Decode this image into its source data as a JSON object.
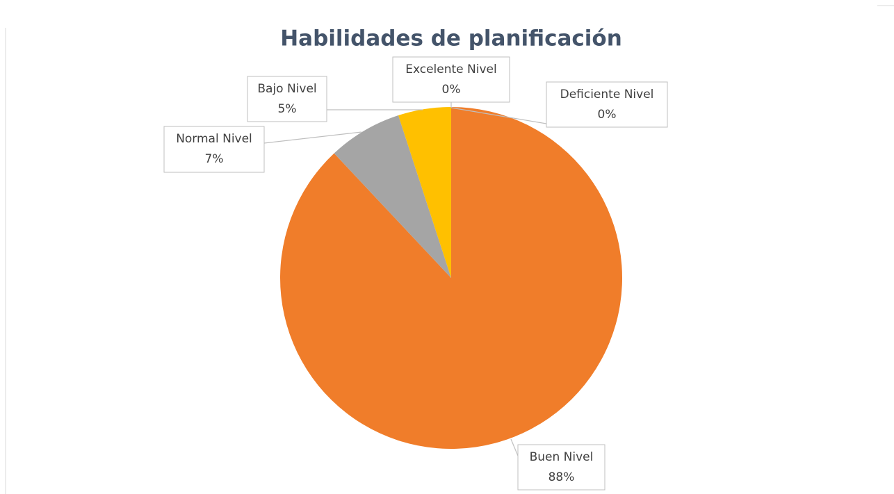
{
  "chart_data": {
    "type": "pie",
    "title": "Habilidades de planificación",
    "categories": [
      "Deficiente Nivel",
      "Buen Nivel",
      "Normal Nivel",
      "Bajo Nivel",
      "Excelente Nivel"
    ],
    "values": [
      0,
      88,
      7,
      5,
      0
    ],
    "value_labels": [
      "0%",
      "88%",
      "7%",
      "5%",
      "0%"
    ],
    "colors": [
      "#4472C4",
      "#F07D2A",
      "#A5A5A5",
      "#FFC000",
      "#5B9BD5"
    ]
  }
}
